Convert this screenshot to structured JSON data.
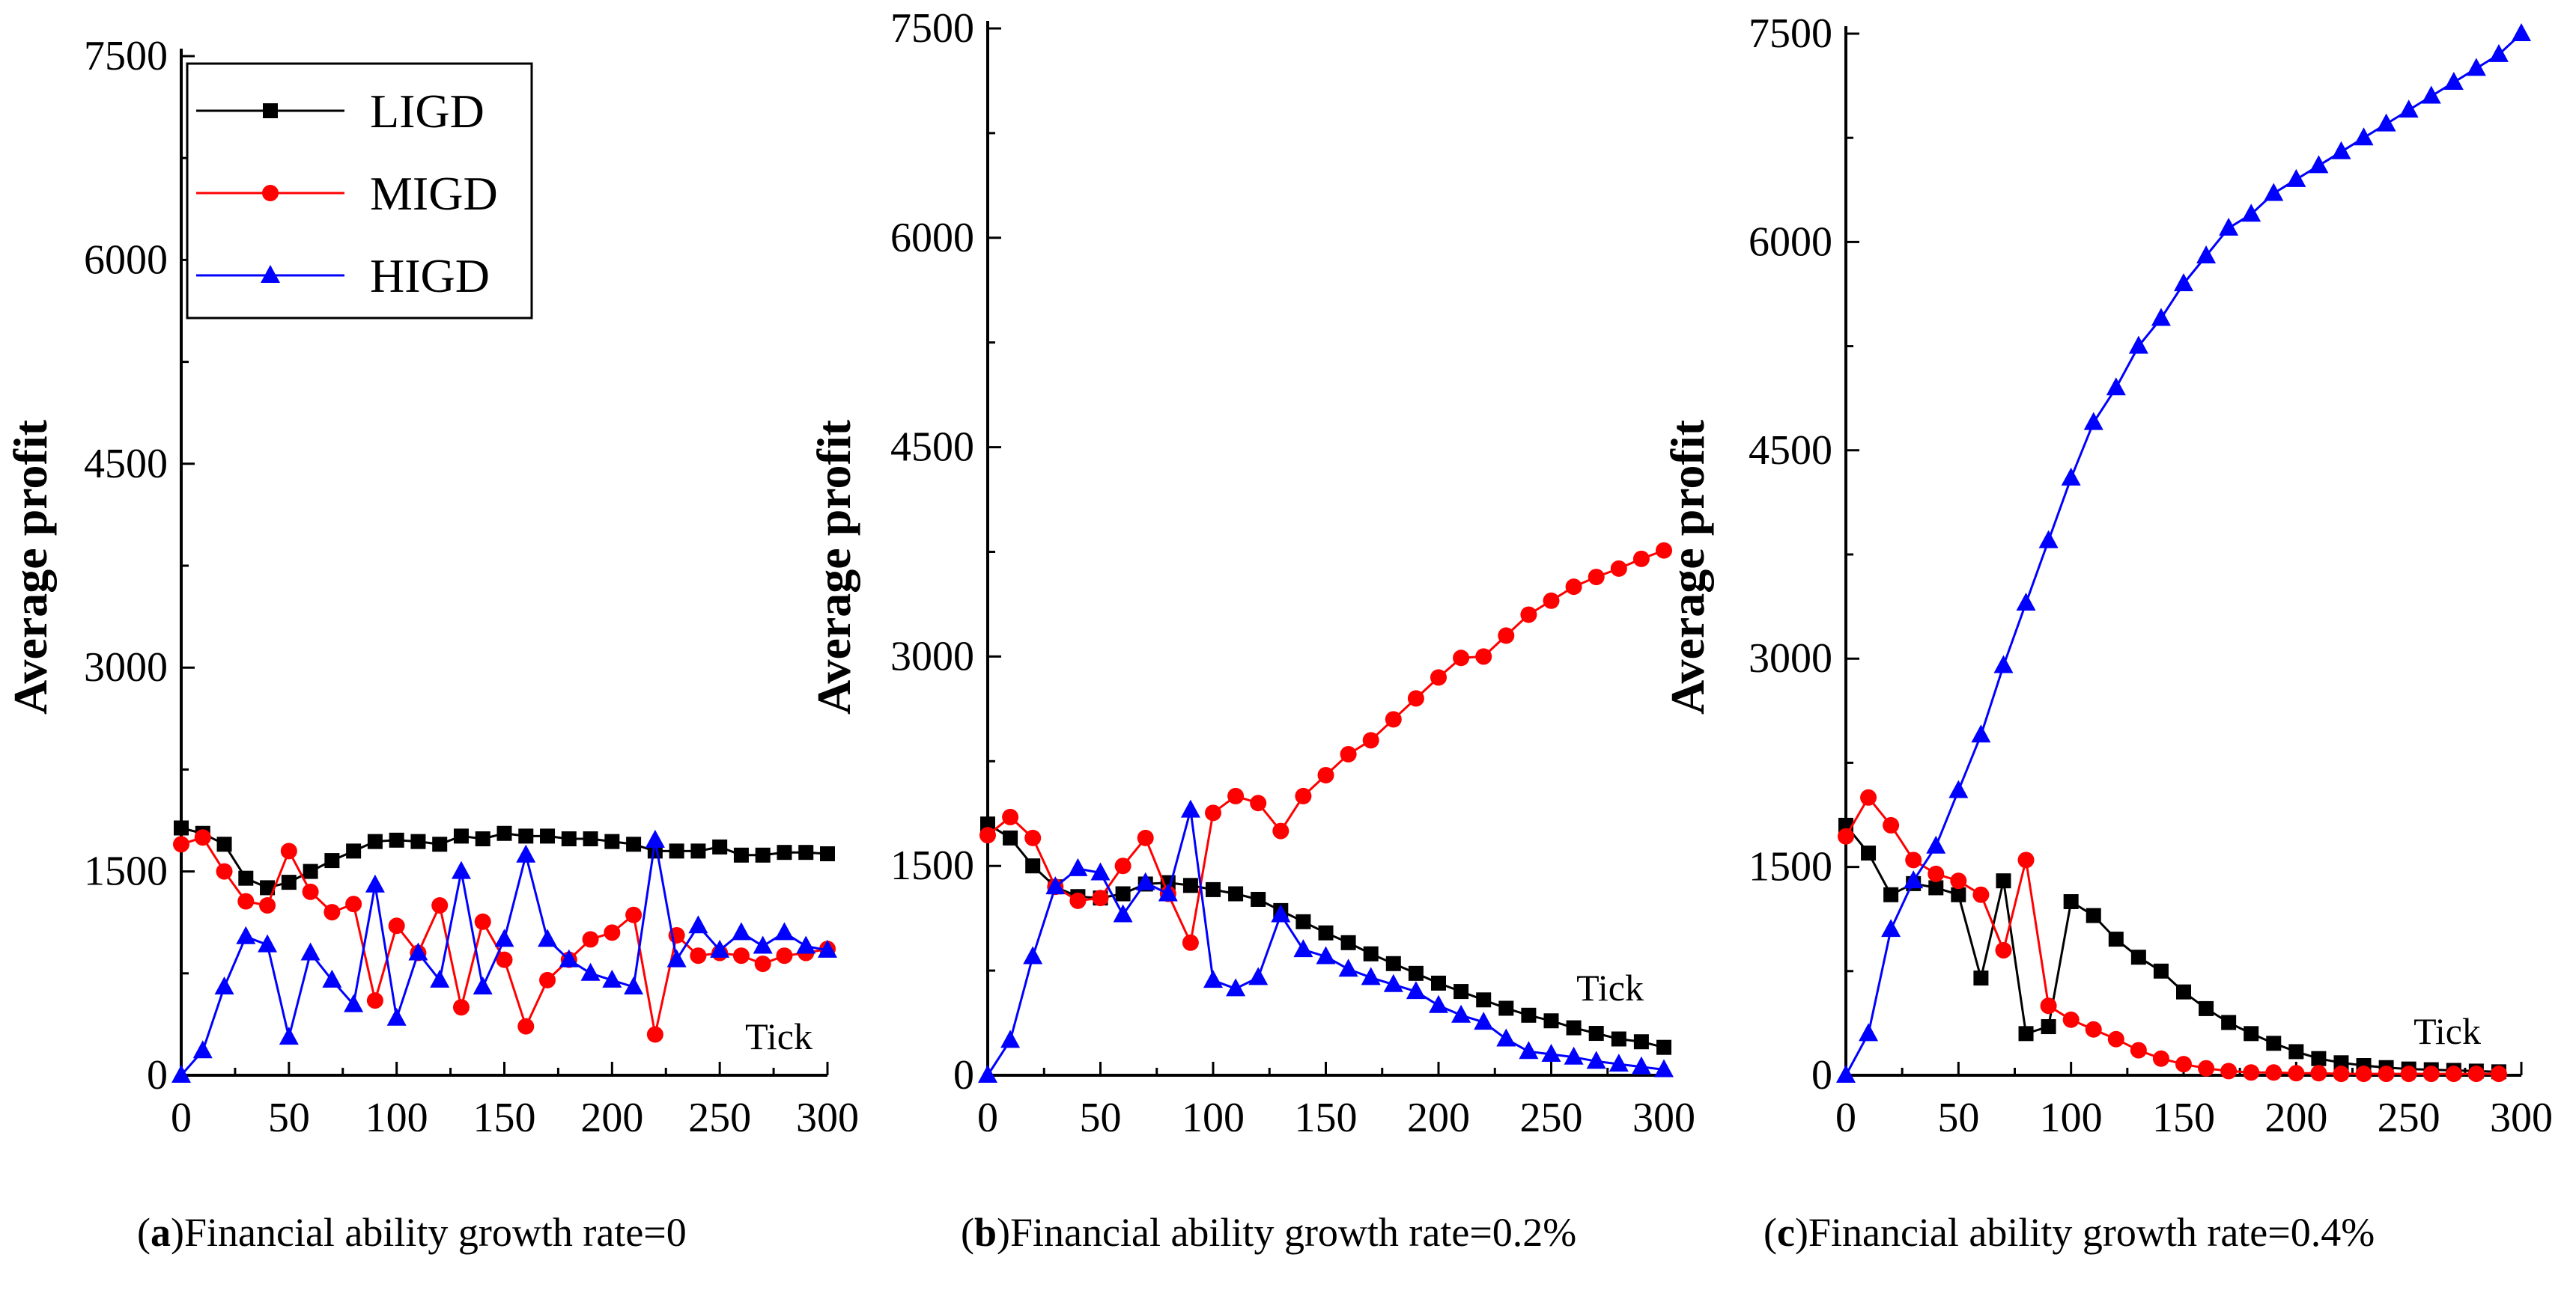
{
  "colors": {
    "LIGD": "#000000",
    "MIGD": "#ff0000",
    "HIGD": "#0000ff"
  },
  "legend": {
    "entries": [
      "LIGD",
      "MIGD",
      "HIGD"
    ]
  },
  "chart_data": [
    {
      "type": "line",
      "caption_letter": "a",
      "caption_open": "(",
      "caption_rest": ")Financial ability growth rate=0",
      "ylabel": "Average profit",
      "xlabel": "Tick",
      "xlim": [
        0,
        300
      ],
      "ylim": [
        0,
        7500
      ],
      "xticks": [
        0,
        50,
        100,
        150,
        200,
        250,
        300
      ],
      "yticks": [
        0,
        1500,
        3000,
        4500,
        6000,
        7500
      ],
      "legend": "top-left",
      "series": [
        {
          "name": "LIGD",
          "marker": "square",
          "x": [
            0,
            10,
            20,
            30,
            40,
            50,
            60,
            70,
            80,
            90,
            100,
            110,
            120,
            130,
            140,
            150,
            160,
            170,
            180,
            190,
            200,
            210,
            220,
            230,
            240,
            250,
            260,
            270,
            280,
            290,
            300
          ],
          "y": [
            1820,
            1780,
            1700,
            1450,
            1380,
            1420,
            1500,
            1580,
            1650,
            1720,
            1730,
            1720,
            1700,
            1760,
            1740,
            1780,
            1760,
            1760,
            1740,
            1740,
            1720,
            1700,
            1650,
            1650,
            1650,
            1680,
            1620,
            1620,
            1640,
            1640,
            1630
          ]
        },
        {
          "name": "MIGD",
          "marker": "circle",
          "x": [
            0,
            10,
            20,
            30,
            40,
            50,
            60,
            70,
            80,
            90,
            100,
            110,
            120,
            130,
            140,
            150,
            160,
            170,
            180,
            190,
            200,
            210,
            220,
            230,
            240,
            250,
            260,
            270,
            280,
            290,
            300
          ],
          "y": [
            1700,
            1750,
            1500,
            1280,
            1250,
            1650,
            1350,
            1200,
            1260,
            550,
            1100,
            900,
            1250,
            500,
            1130,
            850,
            360,
            700,
            850,
            1000,
            1050,
            1180,
            300,
            1030,
            880,
            900,
            880,
            820,
            880,
            900,
            930
          ]
        },
        {
          "name": "HIGD",
          "marker": "triangle",
          "x": [
            0,
            10,
            20,
            30,
            40,
            50,
            60,
            70,
            80,
            90,
            100,
            110,
            120,
            130,
            140,
            150,
            160,
            170,
            180,
            190,
            200,
            210,
            220,
            230,
            240,
            250,
            260,
            270,
            280,
            290,
            300
          ],
          "y": [
            0,
            180,
            650,
            1020,
            960,
            280,
            900,
            700,
            520,
            1400,
            420,
            900,
            700,
            1500,
            650,
            1000,
            1620,
            1000,
            850,
            750,
            700,
            650,
            1730,
            850,
            1100,
            920,
            1050,
            950,
            1050,
            950,
            920
          ]
        }
      ]
    },
    {
      "type": "line",
      "caption_letter": "b",
      "caption_open": "(",
      "caption_rest": ")Financial ability growth rate=0.2%",
      "ylabel": "Average profit",
      "xlabel": "Tick",
      "xlim": [
        0,
        300
      ],
      "ylim": [
        0,
        7500
      ],
      "xticks": [
        0,
        50,
        100,
        150,
        200,
        250,
        300
      ],
      "yticks": [
        0,
        1500,
        3000,
        4500,
        6000,
        7500
      ],
      "series": [
        {
          "name": "LIGD",
          "marker": "square",
          "x": [
            0,
            10,
            20,
            30,
            40,
            50,
            60,
            70,
            80,
            90,
            100,
            110,
            120,
            130,
            140,
            150,
            160,
            170,
            180,
            190,
            200,
            210,
            220,
            230,
            240,
            250,
            260,
            270,
            280,
            290,
            300
          ],
          "y": [
            1800,
            1700,
            1500,
            1350,
            1280,
            1270,
            1300,
            1370,
            1380,
            1360,
            1330,
            1300,
            1260,
            1180,
            1100,
            1020,
            950,
            870,
            800,
            730,
            660,
            600,
            540,
            480,
            430,
            390,
            340,
            300,
            260,
            240,
            200
          ]
        },
        {
          "name": "MIGD",
          "marker": "circle",
          "x": [
            0,
            10,
            20,
            30,
            40,
            50,
            60,
            70,
            80,
            90,
            100,
            110,
            120,
            130,
            140,
            150,
            160,
            170,
            180,
            190,
            200,
            210,
            220,
            230,
            240,
            250,
            260,
            270,
            280,
            290,
            300
          ],
          "y": [
            1720,
            1850,
            1700,
            1350,
            1250,
            1270,
            1500,
            1700,
            1300,
            950,
            1880,
            2000,
            1950,
            1750,
            2000,
            2150,
            2300,
            2400,
            2550,
            2700,
            2850,
            2990,
            3000,
            3150,
            3300,
            3400,
            3500,
            3570,
            3630,
            3700,
            3760
          ]
        },
        {
          "name": "HIGD",
          "marker": "triangle",
          "x": [
            0,
            10,
            20,
            30,
            40,
            50,
            60,
            70,
            80,
            90,
            100,
            110,
            120,
            130,
            140,
            150,
            160,
            170,
            180,
            190,
            200,
            210,
            220,
            230,
            240,
            250,
            260,
            270,
            280,
            290,
            300
          ],
          "y": [
            0,
            250,
            850,
            1350,
            1480,
            1450,
            1150,
            1380,
            1300,
            1900,
            680,
            620,
            700,
            1150,
            900,
            850,
            760,
            700,
            650,
            600,
            500,
            430,
            380,
            260,
            170,
            150,
            130,
            100,
            80,
            60,
            40
          ]
        }
      ]
    },
    {
      "type": "line",
      "caption_letter": "c",
      "caption_open": "(",
      "caption_rest": ")Financial ability growth rate=0.4%",
      "ylabel": "Average profit",
      "xlabel": "Tick",
      "xlim": [
        0,
        300
      ],
      "ylim": [
        0,
        7500
      ],
      "xticks": [
        0,
        50,
        100,
        150,
        200,
        250,
        300
      ],
      "yticks": [
        0,
        1500,
        3000,
        4500,
        6000,
        7500
      ],
      "series": [
        {
          "name": "LIGD",
          "marker": "square",
          "x": [
            0,
            10,
            20,
            30,
            40,
            50,
            60,
            70,
            80,
            90,
            100,
            110,
            120,
            130,
            140,
            150,
            160,
            170,
            180,
            190,
            200,
            210,
            220,
            230,
            240,
            250,
            260,
            270,
            280,
            290
          ],
          "y": [
            1800,
            1600,
            1300,
            1380,
            1350,
            1300,
            700,
            1400,
            300,
            350,
            1250,
            1150,
            980,
            850,
            750,
            600,
            480,
            380,
            300,
            230,
            170,
            120,
            90,
            70,
            55,
            45,
            40,
            35,
            30,
            25
          ]
        },
        {
          "name": "MIGD",
          "marker": "circle",
          "x": [
            0,
            10,
            20,
            30,
            40,
            50,
            60,
            70,
            80,
            90,
            100,
            110,
            120,
            130,
            140,
            150,
            160,
            170,
            180,
            190,
            200,
            210,
            220,
            230,
            240,
            250,
            260,
            270,
            280,
            290
          ],
          "y": [
            1720,
            2000,
            1800,
            1550,
            1450,
            1400,
            1300,
            900,
            1550,
            500,
            400,
            330,
            260,
            180,
            120,
            80,
            50,
            30,
            20,
            20,
            15,
            15,
            10,
            10,
            10,
            10,
            10,
            10,
            10,
            10
          ]
        },
        {
          "name": "HIGD",
          "marker": "triangle",
          "x": [
            0,
            10,
            20,
            30,
            40,
            50,
            60,
            70,
            80,
            90,
            100,
            110,
            120,
            130,
            140,
            150,
            160,
            170,
            180,
            190,
            200,
            210,
            220,
            230,
            240,
            250,
            260,
            270,
            280,
            290,
            300
          ],
          "y": [
            0,
            300,
            1050,
            1400,
            1650,
            2050,
            2450,
            2950,
            3400,
            3850,
            4300,
            4700,
            4950,
            5250,
            5450,
            5700,
            5900,
            6100,
            6200,
            6350,
            6450,
            6550,
            6650,
            6750,
            6850,
            6950,
            7050,
            7150,
            7250,
            7350,
            7500
          ]
        }
      ]
    }
  ]
}
